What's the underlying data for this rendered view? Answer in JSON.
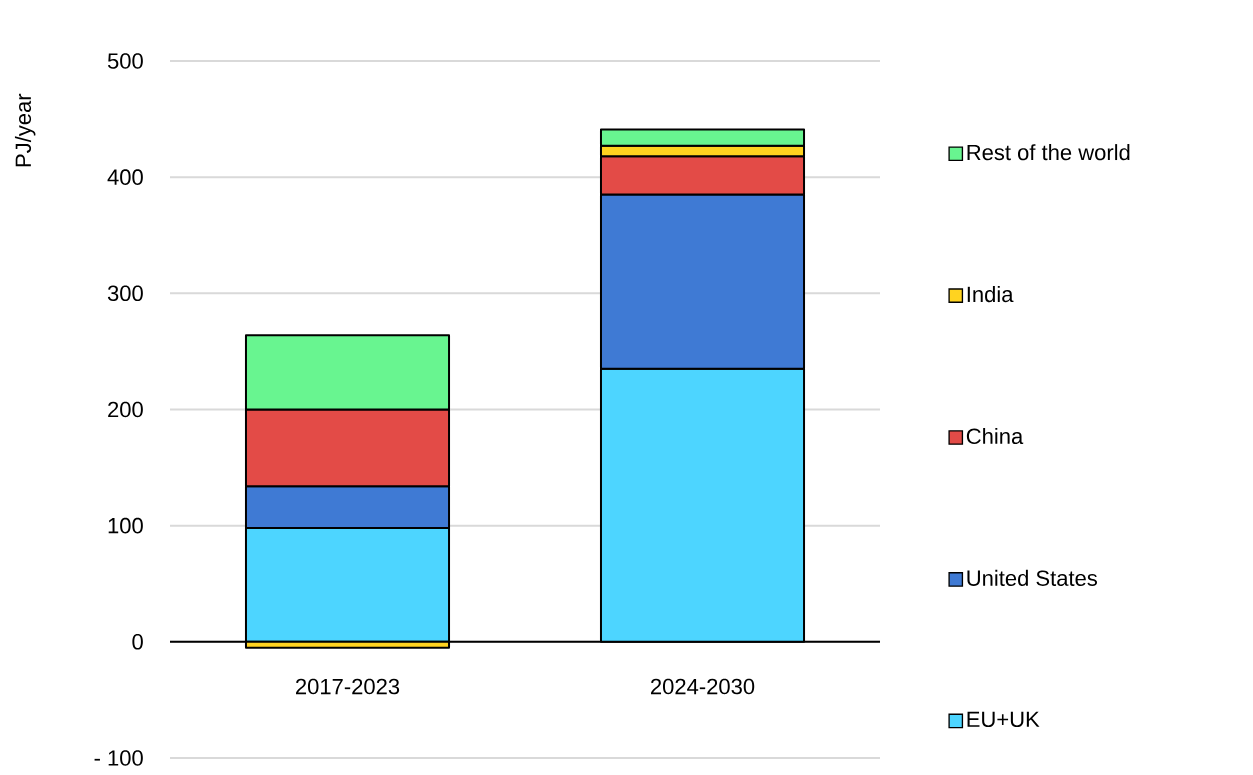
{
  "chart_data": {
    "type": "bar",
    "stacked": true,
    "ylabel": "PJ/year",
    "categories": [
      "2017-2023",
      "2024-2030"
    ],
    "series": [
      {
        "name": "EU+UK",
        "color": "#4dd5ff",
        "values": [
          98,
          235
        ]
      },
      {
        "name": "United States",
        "color": "#3f7ad4",
        "values": [
          36,
          150
        ]
      },
      {
        "name": "China",
        "color": "#e34b47",
        "values": [
          66,
          33
        ]
      },
      {
        "name": "India",
        "color": "#ffd320",
        "values": [
          -5,
          9
        ]
      },
      {
        "name": "Rest of the world",
        "color": "#68f590",
        "values": [
          64,
          14
        ]
      }
    ],
    "ylim": [
      -100,
      500
    ],
    "yticks": [
      {
        "value": -100,
        "label": "- 100"
      },
      0,
      100,
      200,
      300,
      400,
      500
    ],
    "grid": "y",
    "legend": "right"
  }
}
